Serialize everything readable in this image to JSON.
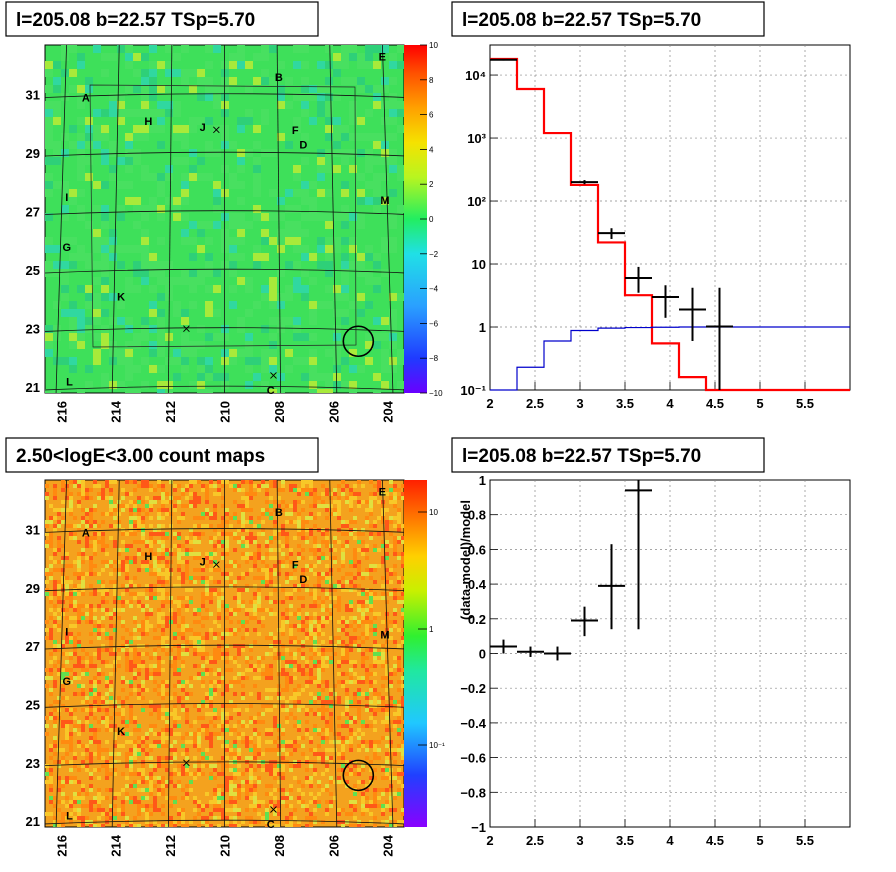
{
  "panels": {
    "tl": {
      "title": "l=205.08 b=22.57 TSp=5.70",
      "xticks": [
        "216",
        "214",
        "212",
        "210",
        "208",
        "206",
        "204"
      ],
      "yticks": [
        "31",
        "29",
        "27",
        "25",
        "23",
        "21"
      ],
      "colorbar": {
        "min": -10,
        "max": 10,
        "labels": [
          "10",
          "8",
          "6",
          "4",
          "2",
          "0",
          "−2",
          "−4",
          "−6",
          "−8",
          "−10"
        ]
      }
    },
    "bl": {
      "title": "2.50<logE<3.00 count maps",
      "xticks": [
        "216",
        "214",
        "212",
        "210",
        "208",
        "206",
        "204"
      ],
      "yticks": [
        "31",
        "29",
        "27",
        "25",
        "23",
        "21"
      ],
      "colorbar": {
        "labels": [
          "10",
          "1",
          "10⁻¹"
        ]
      }
    },
    "tr": {
      "title": "l=205.08 b=22.57 TSp=5.70"
    },
    "br": {
      "title": "l=205.08 b=22.57 TSp=5.70",
      "ylabel": "(data-model)/model"
    }
  },
  "sources": [
    "A",
    "B",
    "C",
    "D",
    "E",
    "F",
    "G",
    "H",
    "I",
    "J",
    "K",
    "L",
    "M"
  ],
  "chart_data": [
    {
      "type": "heatmap",
      "title": "l=205.08 b=22.57 TSp=5.70",
      "xlim": [
        216.6,
        203.4
      ],
      "ylim": [
        20.8,
        32.7
      ],
      "colorbar_range": [
        -10,
        10
      ],
      "source_labels": [
        {
          "label": "A",
          "l": 215.1,
          "b": 30.9
        },
        {
          "label": "B",
          "l": 208.0,
          "b": 31.6
        },
        {
          "label": "C",
          "l": 208.3,
          "b": 20.9
        },
        {
          "label": "D",
          "l": 207.1,
          "b": 29.3
        },
        {
          "label": "E",
          "l": 204.2,
          "b": 32.3
        },
        {
          "label": "F",
          "l": 207.4,
          "b": 29.8
        },
        {
          "label": "G",
          "l": 215.8,
          "b": 25.8
        },
        {
          "label": "H",
          "l": 212.8,
          "b": 30.1
        },
        {
          "label": "I",
          "l": 215.8,
          "b": 27.5
        },
        {
          "label": "J",
          "l": 210.8,
          "b": 29.9
        },
        {
          "label": "K",
          "l": 213.8,
          "b": 24.1
        },
        {
          "label": "L",
          "l": 215.7,
          "b": 21.2
        },
        {
          "label": "M",
          "l": 204.1,
          "b": 27.4
        }
      ],
      "markers": [
        {
          "type": "x",
          "l": 210.3,
          "b": 29.8
        },
        {
          "type": "x",
          "l": 211.4,
          "b": 23.0
        },
        {
          "type": "x",
          "l": 208.2,
          "b": 21.4
        },
        {
          "type": "circle",
          "l": 205.08,
          "b": 22.57
        }
      ]
    },
    {
      "type": "heatmap",
      "title": "2.50<logE<3.00 count maps",
      "xlim": [
        216.6,
        203.4
      ],
      "ylim": [
        20.8,
        32.7
      ],
      "colorbar_scale": "log",
      "markers": [
        {
          "type": "x",
          "l": 210.3,
          "b": 29.8
        },
        {
          "type": "x",
          "l": 211.4,
          "b": 23.0
        },
        {
          "type": "x",
          "l": 208.2,
          "b": 21.4
        },
        {
          "type": "circle",
          "l": 205.08,
          "b": 22.57
        }
      ]
    },
    {
      "type": "line",
      "title": "l=205.08 b=22.57 TSp=5.70",
      "yscale": "log",
      "xlim": [
        2,
        6
      ],
      "ylim": [
        0.1,
        30000
      ],
      "xticks": [
        "2",
        "2.5",
        "3",
        "3.5",
        "4",
        "4.5",
        "5",
        "5.5"
      ],
      "yticks": [
        {
          "value": 0.1,
          "label": "10⁻¹"
        },
        {
          "value": 1,
          "label": "1"
        },
        {
          "value": 10,
          "label": "10"
        },
        {
          "value": 100,
          "label": "10²"
        },
        {
          "value": 1000,
          "label": "10³"
        },
        {
          "value": 10000,
          "label": "10⁴"
        }
      ],
      "series": [
        {
          "color": "#ff0000",
          "edges": [
            2,
            2.3,
            2.6,
            2.9,
            3.2,
            3.5,
            3.8,
            4.1,
            4.4,
            6
          ],
          "values": [
            18000,
            6000,
            1200,
            180,
            22,
            3.2,
            0.55,
            0.16,
            0.1
          ]
        },
        {
          "color": "#0000cc",
          "edges": [
            2,
            2.3,
            2.6,
            2.9,
            3.2,
            3.5,
            3.8,
            4.1,
            6
          ],
          "values": [
            0.07,
            0.23,
            0.6,
            0.88,
            0.96,
            0.98,
            0.99,
            1.0
          ]
        }
      ],
      "points": [
        {
          "x": 2.15,
          "xerr": 0.15,
          "y": 17500,
          "ylo": 17000,
          "yhi": 18000
        },
        {
          "x": 3.05,
          "xerr": 0.15,
          "y": 200,
          "ylo": 185,
          "yhi": 215
        },
        {
          "x": 3.35,
          "xerr": 0.15,
          "y": 31,
          "ylo": 25,
          "yhi": 37
        },
        {
          "x": 3.65,
          "xerr": 0.15,
          "y": 6,
          "ylo": 3.5,
          "yhi": 9
        },
        {
          "x": 3.95,
          "xerr": 0.15,
          "y": 3,
          "ylo": 1.4,
          "yhi": 4.6
        },
        {
          "x": 4.25,
          "xerr": 0.15,
          "y": 1.9,
          "ylo": 0.6,
          "yhi": 4.2
        },
        {
          "x": 4.55,
          "xerr": 0.15,
          "y": 1.02,
          "ylo": 0.1,
          "yhi": 4.2
        }
      ]
    },
    {
      "type": "scatter",
      "title": "l=205.08 b=22.57 TSp=5.70",
      "ylabel": "(data-model)/model",
      "xlim": [
        2,
        6
      ],
      "ylim": [
        -1,
        1
      ],
      "xticks": [
        "2",
        "2.5",
        "3",
        "3.5",
        "4",
        "4.5",
        "5",
        "5.5"
      ],
      "yticks": [
        "1",
        "0.8",
        "0.6",
        "0.4",
        "0.2",
        "0",
        "−0.2",
        "−0.4",
        "−0.6",
        "−0.8",
        "−1"
      ],
      "points": [
        {
          "x": 2.15,
          "xerr": 0.15,
          "y": 0.04,
          "ylo": 0.0,
          "yhi": 0.08
        },
        {
          "x": 2.45,
          "xerr": 0.15,
          "y": 0.01,
          "ylo": -0.02,
          "yhi": 0.04
        },
        {
          "x": 2.75,
          "xerr": 0.15,
          "y": 0.0,
          "ylo": -0.04,
          "yhi": 0.04
        },
        {
          "x": 3.05,
          "xerr": 0.15,
          "y": 0.19,
          "ylo": 0.1,
          "yhi": 0.27
        },
        {
          "x": 3.35,
          "xerr": 0.15,
          "y": 0.39,
          "ylo": 0.14,
          "yhi": 0.63
        },
        {
          "x": 3.65,
          "xerr": 0.15,
          "y": 0.94,
          "ylo": 0.14,
          "yhi": 1.0
        }
      ]
    }
  ]
}
